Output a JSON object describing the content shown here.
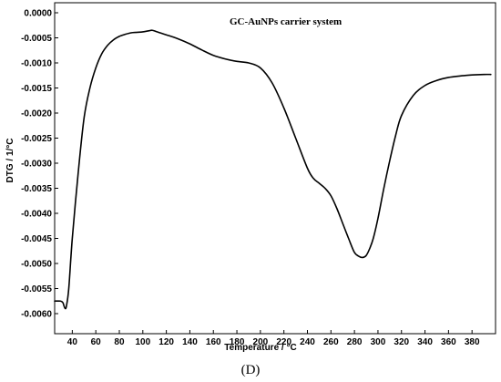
{
  "chart_data": {
    "type": "line",
    "title": "",
    "annotation": "GC-AuNPs carrier system",
    "panel_label": "(D)",
    "xlabel": "Temperature /  °C",
    "ylabel": "DTG / 1/°C",
    "xlim": [
      25,
      400
    ],
    "ylim": [
      -0.0064,
      0.0002
    ],
    "grid": false,
    "legend": "none",
    "line_color": "#000000",
    "x_ticks": [
      40,
      60,
      80,
      100,
      120,
      140,
      160,
      180,
      200,
      220,
      240,
      260,
      280,
      300,
      320,
      340,
      360,
      380
    ],
    "x_tick_labels": [
      "40",
      "60",
      "80",
      "100",
      "120",
      "140",
      "160",
      "180",
      "200",
      "220",
      "240",
      "260",
      "280",
      "300",
      "320",
      "340",
      "360",
      "380"
    ],
    "y_ticks": [
      0,
      -0.0005,
      -0.001,
      -0.0015,
      -0.002,
      -0.0025,
      -0.003,
      -0.0035,
      -0.004,
      -0.0045,
      -0.005,
      -0.0055,
      -0.006
    ],
    "y_tick_labels": [
      "0.0000",
      "-0.0005",
      "-0.0010",
      "-0.0015",
      "-0.0020",
      "-0.0025",
      "-0.0030",
      "-0.0035",
      "-0.0040",
      "-0.0045",
      "-0.0050",
      "-0.0055",
      "-0.0060"
    ],
    "series": [
      {
        "x": [
          25,
          30,
          32,
          33,
          34,
          35,
          37,
          40,
          45,
          50,
          55,
          60,
          65,
          70,
          75,
          80,
          85,
          90,
          95,
          100,
          105,
          108,
          112,
          120,
          130,
          140,
          150,
          160,
          170,
          180,
          190,
          200,
          210,
          220,
          230,
          240,
          245,
          250,
          255,
          260,
          265,
          270,
          275,
          280,
          284,
          287,
          290,
          293,
          296,
          300,
          305,
          310,
          315,
          320,
          330,
          340,
          350,
          360,
          370,
          380,
          390,
          396
        ],
        "y": [
          -0.00575,
          -0.00575,
          -0.00578,
          -0.00585,
          -0.0059,
          -0.00585,
          -0.0055,
          -0.0045,
          -0.0032,
          -0.0021,
          -0.0015,
          -0.0011,
          -0.00082,
          -0.00065,
          -0.00054,
          -0.00047,
          -0.00043,
          -0.0004,
          -0.00039,
          -0.00038,
          -0.00036,
          -0.00035,
          -0.00038,
          -0.00044,
          -0.00052,
          -0.00062,
          -0.00074,
          -0.00085,
          -0.00092,
          -0.00097,
          -0.001,
          -0.0011,
          -0.0014,
          -0.0019,
          -0.0025,
          -0.0031,
          -0.0033,
          -0.0034,
          -0.0035,
          -0.00365,
          -0.0039,
          -0.0042,
          -0.0045,
          -0.00478,
          -0.00486,
          -0.00488,
          -0.00484,
          -0.0047,
          -0.0045,
          -0.0041,
          -0.0035,
          -0.00295,
          -0.00245,
          -0.00205,
          -0.00165,
          -0.00145,
          -0.00135,
          -0.00129,
          -0.00126,
          -0.00124,
          -0.00123,
          -0.00123
        ]
      }
    ]
  }
}
